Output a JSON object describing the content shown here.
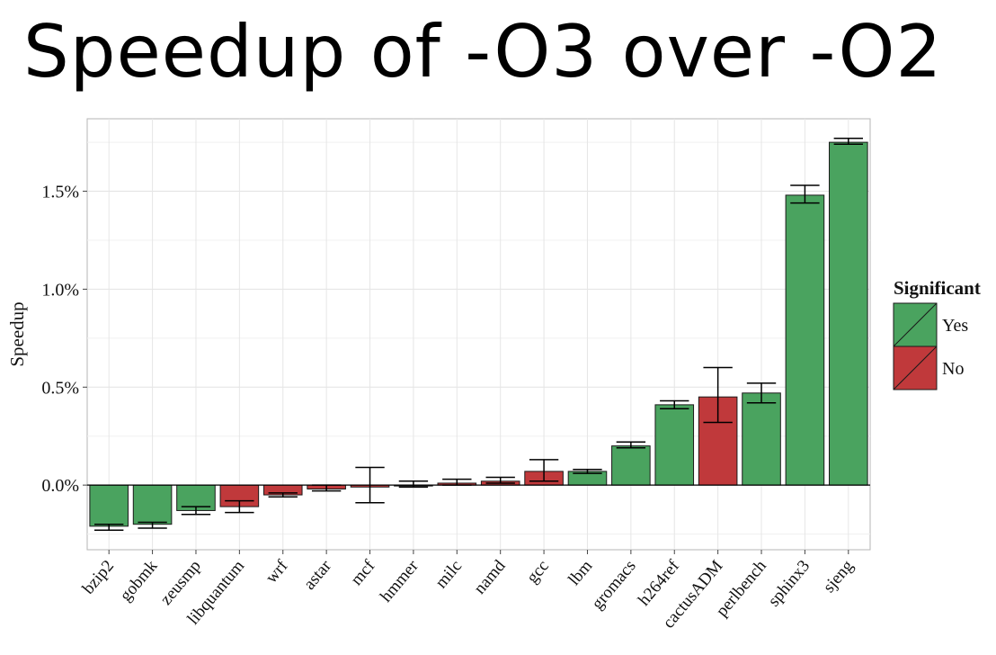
{
  "title": "Speedup of -O3 over -O2",
  "chart_data": {
    "type": "bar",
    "ylabel": "Speedup",
    "xlabel": "",
    "ylim": [
      -0.33,
      1.87
    ],
    "yticks": [
      0.0,
      0.5,
      1.0,
      1.5
    ],
    "ytick_labels": [
      "0.0%",
      "0.5%",
      "1.0%",
      "1.5%"
    ],
    "grid": true,
    "legend": {
      "title": "Significant",
      "placement": "right",
      "entries": [
        "Yes",
        "No"
      ]
    },
    "colors": {
      "Yes": "#4aa35f",
      "No": "#c0393b"
    },
    "categories": [
      "bzip2",
      "gobmk",
      "zeusmp",
      "libquantum",
      "wrf",
      "astar",
      "mcf",
      "hmmer",
      "milc",
      "namd",
      "gcc",
      "lbm",
      "gromacs",
      "h264ref",
      "cactusADM",
      "perlbench",
      "sphinx3",
      "sjeng"
    ],
    "values": [
      -0.21,
      -0.2,
      -0.13,
      -0.11,
      -0.05,
      -0.02,
      -0.01,
      0.0,
      0.01,
      0.02,
      0.07,
      0.07,
      0.2,
      0.41,
      0.45,
      0.47,
      1.48,
      1.75
    ],
    "error_low": [
      -0.23,
      -0.22,
      -0.15,
      -0.14,
      -0.06,
      -0.03,
      -0.09,
      -0.01,
      0.0,
      0.01,
      0.02,
      0.06,
      0.19,
      0.39,
      0.32,
      0.42,
      1.44,
      1.74
    ],
    "error_high": [
      -0.2,
      -0.19,
      -0.11,
      -0.08,
      -0.04,
      0.0,
      0.09,
      0.02,
      0.03,
      0.04,
      0.13,
      0.08,
      0.22,
      0.43,
      0.6,
      0.52,
      1.53,
      1.77
    ],
    "significant": [
      "Yes",
      "Yes",
      "Yes",
      "No",
      "No",
      "No",
      "No",
      "No",
      "No",
      "No",
      "No",
      "Yes",
      "Yes",
      "Yes",
      "No",
      "Yes",
      "Yes",
      "Yes"
    ]
  }
}
